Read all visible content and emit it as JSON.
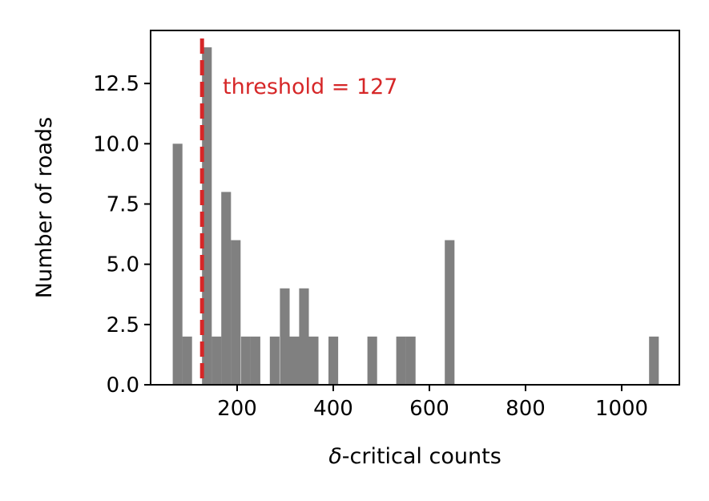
{
  "chart_data": {
    "type": "bar",
    "title": "",
    "xlabel_symbol": "δ",
    "xlabel_rest": "-critical counts",
    "ylabel": "Number of roads",
    "xlim": [
      20,
      1120
    ],
    "ylim": [
      0,
      14.7
    ],
    "xticks": [
      200,
      400,
      600,
      800,
      1000
    ],
    "xtick_labels": [
      "200",
      "400",
      "600",
      "800",
      "1000"
    ],
    "yticks": [
      0,
      2.5,
      5,
      7.5,
      10,
      12.5
    ],
    "ytick_labels": [
      "0.0",
      "2.5",
      "5.0",
      "7.5",
      "10.0",
      "12.5"
    ],
    "bin_width": 20.2,
    "bins": [
      {
        "x": 66,
        "value": 10
      },
      {
        "x": 86,
        "value": 2
      },
      {
        "x": 127,
        "value": 14
      },
      {
        "x": 147,
        "value": 2
      },
      {
        "x": 167,
        "value": 8
      },
      {
        "x": 187,
        "value": 6
      },
      {
        "x": 208,
        "value": 2
      },
      {
        "x": 228,
        "value": 2
      },
      {
        "x": 268,
        "value": 2
      },
      {
        "x": 289,
        "value": 4
      },
      {
        "x": 309,
        "value": 2
      },
      {
        "x": 329,
        "value": 4
      },
      {
        "x": 349,
        "value": 2
      },
      {
        "x": 390,
        "value": 2
      },
      {
        "x": 471,
        "value": 2
      },
      {
        "x": 531,
        "value": 2
      },
      {
        "x": 551,
        "value": 2
      },
      {
        "x": 632,
        "value": 6
      },
      {
        "x": 1057,
        "value": 2
      }
    ],
    "bar_color": "#808080",
    "threshold": {
      "value": 127,
      "label": "threshold = 127",
      "color": "#d62728",
      "style": "dashed"
    },
    "grid": false
  }
}
